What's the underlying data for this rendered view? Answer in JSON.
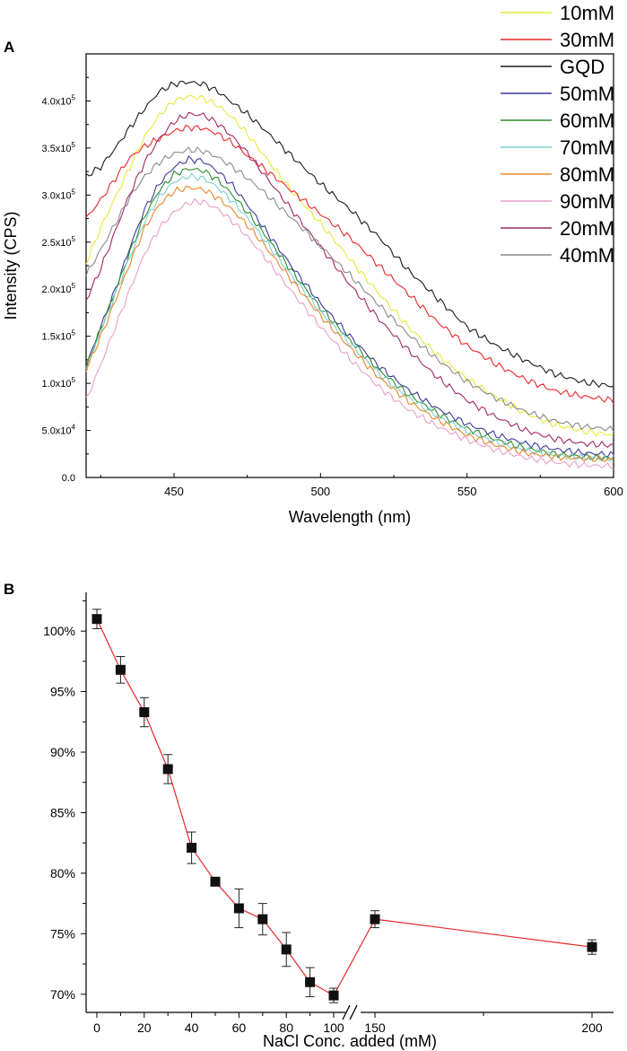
{
  "chart_data": [
    {
      "panel_label": "A",
      "type": "line",
      "xlabel": "Wavelength (nm)",
      "ylabel": "Intensity (CPS)",
      "xlim": [
        420,
        600
      ],
      "ylim": [
        0,
        450000.0
      ],
      "xticks": [
        450,
        500,
        550,
        600
      ],
      "yticks": [
        {
          "value": 0,
          "mant": "0.0",
          "exp": ""
        },
        {
          "value": 50000,
          "mant": "5.0x10",
          "exp": "4"
        },
        {
          "value": 100000,
          "mant": "1.0x10",
          "exp": "5"
        },
        {
          "value": 150000,
          "mant": "1.5x10",
          "exp": "5"
        },
        {
          "value": 200000,
          "mant": "2.0x10",
          "exp": "5"
        },
        {
          "value": 250000,
          "mant": "2.5x10",
          "exp": "5"
        },
        {
          "value": 300000,
          "mant": "3.0x10",
          "exp": "5"
        },
        {
          "value": 350000,
          "mant": "3.5x10",
          "exp": "5"
        },
        {
          "value": 400000,
          "mant": "4.0x10",
          "exp": "5"
        }
      ],
      "x": [
        420,
        425,
        430,
        435,
        440,
        445,
        450,
        455,
        460,
        465,
        470,
        475,
        480,
        490,
        500,
        510,
        520,
        530,
        540,
        550,
        560,
        570,
        580,
        590,
        600
      ],
      "series": [
        {
          "name": "10mM",
          "color": "#e8e83a",
          "values": [
            228000,
            265000,
            298000,
            330000,
            362000,
            385000,
            400000,
            405000,
            403000,
            395000,
            382000,
            365000,
            345000,
            305000,
            270000,
            232000,
            195000,
            160000,
            130000,
            105000,
            85000,
            68000,
            56000,
            49000,
            45000
          ]
        },
        {
          "name": "30mM",
          "color": "#e8282a",
          "values": [
            275000,
            295000,
            318000,
            340000,
            352000,
            360000,
            368000,
            372000,
            371000,
            365000,
            355000,
            342000,
            330000,
            305000,
            280000,
            255000,
            225000,
            195000,
            165000,
            140000,
            120000,
            104000,
            92000,
            86000,
            82000
          ]
        },
        {
          "name": "GQD",
          "color": "#1a1a1a",
          "values": [
            320000,
            330000,
            350000,
            372000,
            392000,
            410000,
            418000,
            420000,
            418000,
            410000,
            398000,
            386000,
            372000,
            342000,
            312000,
            285000,
            255000,
            220000,
            190000,
            160000,
            140000,
            124000,
            110000,
            101000,
            97000
          ]
        },
        {
          "name": "50mM",
          "color": "#3a3a9a",
          "values": [
            118000,
            160000,
            200000,
            245000,
            285000,
            312000,
            330000,
            338000,
            336000,
            325000,
            310000,
            290000,
            268000,
            225000,
            185000,
            150000,
            118000,
            93000,
            73000,
            57000,
            45000,
            36000,
            30000,
            26000,
            24000
          ]
        },
        {
          "name": "60mM",
          "color": "#2e8b2e",
          "values": [
            117000,
            158000,
            198000,
            240000,
            278000,
            305000,
            322000,
            328000,
            326000,
            316000,
            300000,
            282000,
            262000,
            220000,
            180000,
            146000,
            114000,
            88000,
            68000,
            52000,
            40000,
            31000,
            25000,
            22000,
            20000
          ]
        },
        {
          "name": "70mM",
          "color": "#7ecfcf",
          "values": [
            116000,
            155000,
            195000,
            235000,
            272000,
            298000,
            314000,
            320000,
            318000,
            308000,
            293000,
            276000,
            256000,
            215000,
            176000,
            142000,
            110000,
            85000,
            65000,
            49000,
            37000,
            29000,
            24000,
            21000,
            20000
          ]
        },
        {
          "name": "80mM",
          "color": "#e8862a",
          "values": [
            114000,
            150000,
            188000,
            228000,
            265000,
            290000,
            304000,
            308000,
            306000,
            297000,
            284000,
            268000,
            250000,
            210000,
            172000,
            138000,
            106000,
            81000,
            61000,
            45000,
            34000,
            26000,
            22000,
            20000,
            19000
          ]
        },
        {
          "name": "90mM",
          "color": "#e6a0c8",
          "values": [
            82000,
            120000,
            160000,
            200000,
            238000,
            265000,
            282000,
            292000,
            293000,
            285000,
            272000,
            256000,
            238000,
            198000,
            160000,
            126000,
            96000,
            72000,
            54000,
            40000,
            29000,
            21000,
            16000,
            13000,
            12000
          ]
        },
        {
          "name": "20mM",
          "color": "#a02868",
          "values": [
            188000,
            222000,
            262000,
            302000,
            335000,
            360000,
            378000,
            386000,
            385000,
            376000,
            362000,
            345000,
            325000,
            285000,
            245000,
            205000,
            168000,
            135000,
            106000,
            82000,
            64000,
            50000,
            41000,
            36000,
            34000
          ]
        },
        {
          "name": "40mM",
          "color": "#8a8a8a",
          "values": [
            215000,
            242000,
            270000,
            298000,
            320000,
            335000,
            344000,
            348000,
            347000,
            340000,
            330000,
            318000,
            305000,
            276000,
            246000,
            215000,
            183000,
            152000,
            125000,
            102000,
            84000,
            70000,
            60000,
            54000,
            51000
          ]
        }
      ]
    },
    {
      "panel_label": "B",
      "type": "scatter",
      "xlabel": "NaCl Conc. added (mM)",
      "ylabel": "",
      "ylim": [
        68.5,
        103.2
      ],
      "xticks": [
        0,
        20,
        40,
        60,
        80,
        100,
        150,
        200
      ],
      "yticks": [
        {
          "value": 70,
          "label": "70%"
        },
        {
          "value": 75,
          "label": "75%"
        },
        {
          "value": 80,
          "label": "80%"
        },
        {
          "value": 85,
          "label": "85%"
        },
        {
          "value": 90,
          "label": "90%"
        },
        {
          "value": 95,
          "label": "95%"
        },
        {
          "value": 100,
          "label": "100%"
        }
      ],
      "axis_break_between": [
        100,
        150
      ],
      "line_color": "#e8282a",
      "marker_color": "#111111",
      "points": [
        {
          "x": 0,
          "y": 101.0,
          "err": 0.8
        },
        {
          "x": 10,
          "y": 96.8,
          "err": 1.1
        },
        {
          "x": 20,
          "y": 93.3,
          "err": 1.2
        },
        {
          "x": 30,
          "y": 88.6,
          "err": 1.2
        },
        {
          "x": 40,
          "y": 82.1,
          "err": 1.3
        },
        {
          "x": 50,
          "y": 79.3,
          "err": 0.0
        },
        {
          "x": 60,
          "y": 77.1,
          "err": 1.6
        },
        {
          "x": 70,
          "y": 76.2,
          "err": 1.3
        },
        {
          "x": 80,
          "y": 73.7,
          "err": 1.4
        },
        {
          "x": 90,
          "y": 71.0,
          "err": 1.2
        },
        {
          "x": 100,
          "y": 69.9,
          "err": 0.6
        },
        {
          "x": 150,
          "y": 76.2,
          "err": 0.7
        },
        {
          "x": 200,
          "y": 73.9,
          "err": 0.6
        }
      ]
    }
  ]
}
